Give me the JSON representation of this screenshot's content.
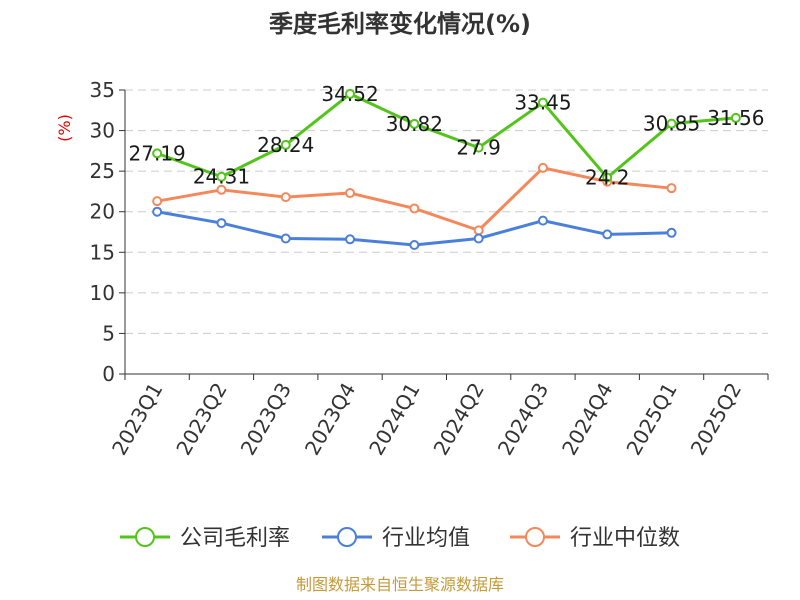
{
  "chart_data": {
    "type": "line",
    "title": "季度毛利率变化情况(%)",
    "ylabel": "(%)",
    "ylim": [
      0,
      35
    ],
    "yticks": [
      0,
      5,
      10,
      15,
      20,
      25,
      30,
      35
    ],
    "categories": [
      "2023Q1",
      "2023Q2",
      "2023Q3",
      "2023Q4",
      "2024Q1",
      "2024Q2",
      "2024Q3",
      "2024Q4",
      "2025Q1",
      "2025Q2"
    ],
    "grid": true,
    "legend_position": "bottom",
    "series": [
      {
        "name": "公司毛利率",
        "color": "#52c41a",
        "values": [
          27.19,
          24.31,
          28.24,
          34.52,
          30.82,
          27.9,
          33.45,
          24.2,
          30.85,
          31.56
        ],
        "labels": [
          "27.19",
          "24.31",
          "28.24",
          "34.52",
          "30.82",
          "27.9",
          "33.45",
          "24.2",
          "30.85",
          "31.56"
        ]
      },
      {
        "name": "行业均值",
        "color": "#4a7fdc",
        "values": [
          20.0,
          18.6,
          16.7,
          16.6,
          15.9,
          16.7,
          18.9,
          17.2,
          17.4,
          null
        ]
      },
      {
        "name": "行业中位数",
        "color": "#f5885a",
        "values": [
          21.3,
          22.7,
          21.8,
          22.3,
          20.4,
          17.7,
          25.4,
          23.7,
          22.9,
          null
        ]
      }
    ]
  },
  "source": "制图数据来自恒生聚源数据库"
}
